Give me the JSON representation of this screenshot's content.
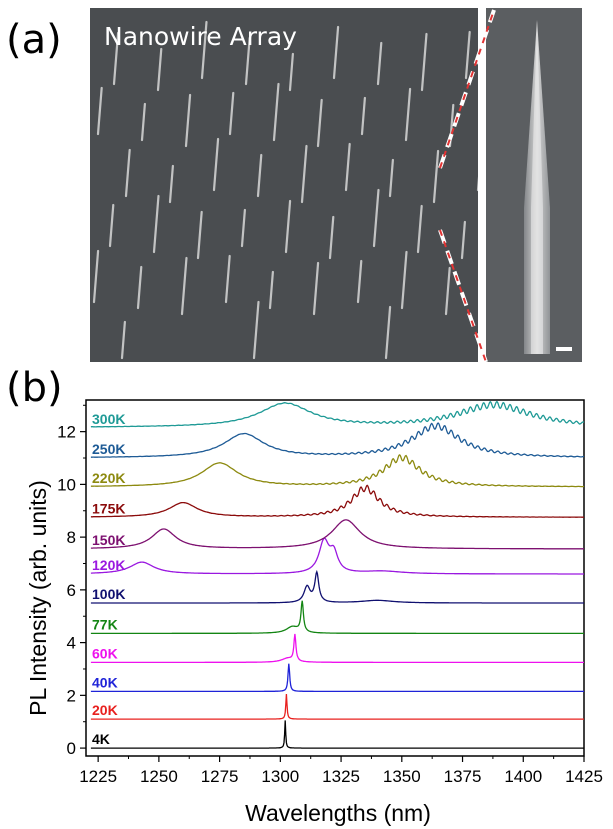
{
  "panel_a": {
    "label": "(a)",
    "image_title": "Nanowire Array"
  },
  "panel_b": {
    "label": "(b)"
  },
  "colors": {
    "sem_background": "#4a4d50",
    "nanowire": "#d8d8d8",
    "zoom_line": "#e23333"
  },
  "chart_data": {
    "type": "line",
    "title": "",
    "xlabel": "Wavelengths (nm)",
    "ylabel": "PL Intensity (arb. units)",
    "xlim": [
      1220,
      1425
    ],
    "ylim": [
      -0.3,
      13.2
    ],
    "xticks": [
      1225,
      1250,
      1275,
      1300,
      1325,
      1350,
      1375,
      1400,
      1425
    ],
    "yticks": [
      0,
      2,
      4,
      6,
      8,
      10,
      12
    ],
    "grid": false,
    "series": [
      {
        "name": "4K",
        "color": "#000000",
        "baseline": 0.0,
        "peaks": [
          {
            "x": 1302,
            "height": 1.05,
            "width": 0.25
          }
        ]
      },
      {
        "name": "20K",
        "color": "#e8201e",
        "baseline": 1.1,
        "peaks": [
          {
            "x": 1302.5,
            "height": 0.95,
            "width": 0.3
          }
        ]
      },
      {
        "name": "40K",
        "color": "#1f23d8",
        "baseline": 2.15,
        "peaks": [
          {
            "x": 1303.5,
            "height": 1.05,
            "width": 0.4
          }
        ]
      },
      {
        "name": "60K",
        "color": "#ee11ee",
        "baseline": 3.25,
        "peaks": [
          {
            "x": 1306,
            "height": 1.0,
            "width": 0.5
          },
          {
            "x": 1303,
            "height": 0.15,
            "width": 3
          }
        ]
      },
      {
        "name": "77K",
        "color": "#138513",
        "baseline": 4.35,
        "peaks": [
          {
            "x": 1309,
            "height": 1.15,
            "width": 0.6
          },
          {
            "x": 1305,
            "height": 0.25,
            "width": 3
          }
        ]
      },
      {
        "name": "100K",
        "color": "#101070",
        "baseline": 5.5,
        "peaks": [
          {
            "x": 1315,
            "height": 1.1,
            "width": 1
          },
          {
            "x": 1311,
            "height": 0.6,
            "width": 1.5
          },
          {
            "x": 1340,
            "height": 0.1,
            "width": 8
          }
        ]
      },
      {
        "name": "120K",
        "color": "#9a18e0",
        "baseline": 6.6,
        "peaks": [
          {
            "x": 1318,
            "height": 1.2,
            "width": 2.5
          },
          {
            "x": 1322,
            "height": 0.7,
            "width": 2
          },
          {
            "x": 1243,
            "height": 0.45,
            "width": 6
          },
          {
            "x": 1342,
            "height": 0.1,
            "width": 10
          }
        ]
      },
      {
        "name": "150K",
        "color": "#7d1070",
        "baseline": 7.55,
        "peaks": [
          {
            "x": 1327,
            "height": 1.1,
            "width": 7
          },
          {
            "x": 1252,
            "height": 0.75,
            "width": 6
          }
        ]
      },
      {
        "name": "175K",
        "color": "#8b0b0b",
        "baseline": 8.75,
        "peaks": [
          {
            "x": 1335,
            "height": 1.1,
            "width": 7
          },
          {
            "x": 1260,
            "height": 0.55,
            "width": 7
          }
        ]
      },
      {
        "name": "220K",
        "color": "#8d8a10",
        "baseline": 9.9,
        "peaks": [
          {
            "x": 1350,
            "height": 1.1,
            "width": 9
          },
          {
            "x": 1275,
            "height": 0.9,
            "width": 9
          }
        ]
      },
      {
        "name": "250K",
        "color": "#1e5b96",
        "baseline": 11.0,
        "peaks": [
          {
            "x": 1364,
            "height": 1.2,
            "width": 12
          },
          {
            "x": 1285,
            "height": 0.9,
            "width": 10
          }
        ]
      },
      {
        "name": "300K",
        "color": "#1f9a96",
        "baseline": 12.15,
        "peaks": [
          {
            "x": 1388,
            "height": 0.85,
            "width": 18
          },
          {
            "x": 1302,
            "height": 0.9,
            "width": 13
          }
        ]
      }
    ],
    "annotations": [
      "300K",
      "250K",
      "220K",
      "175K",
      "150K",
      "120K",
      "100K",
      "77K",
      "60K",
      "40K",
      "20K",
      "4K"
    ]
  }
}
